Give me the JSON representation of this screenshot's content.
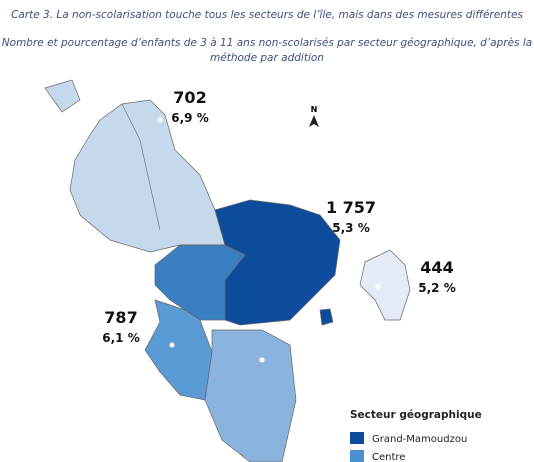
{
  "header": {
    "title": "Carte 3. La non-scolarisation touche tous les secteurs de l’île, mais dans des mesures différentes",
    "subtitle": [
      "Nombre et pourcentage d’enfants de 3 à 11 ans non-scolarisés par secteur géographique, d’après la",
      "méthode par addition"
    ]
  },
  "compass": "N",
  "regions": [
    {
      "count": "702",
      "share": "6,9 %"
    },
    {
      "count": "1 757",
      "share": "5,3 %"
    },
    {
      "count": "444",
      "share": "5,2 %"
    },
    {
      "count": "787",
      "share": "6,1 %"
    }
  ],
  "legend": {
    "title": "Secteur géographique",
    "items": [
      {
        "label": "Grand-Mamoudzou",
        "color": "#0d4c9c"
      },
      {
        "label": "Centre",
        "color": "#4a8fcf"
      }
    ]
  }
}
